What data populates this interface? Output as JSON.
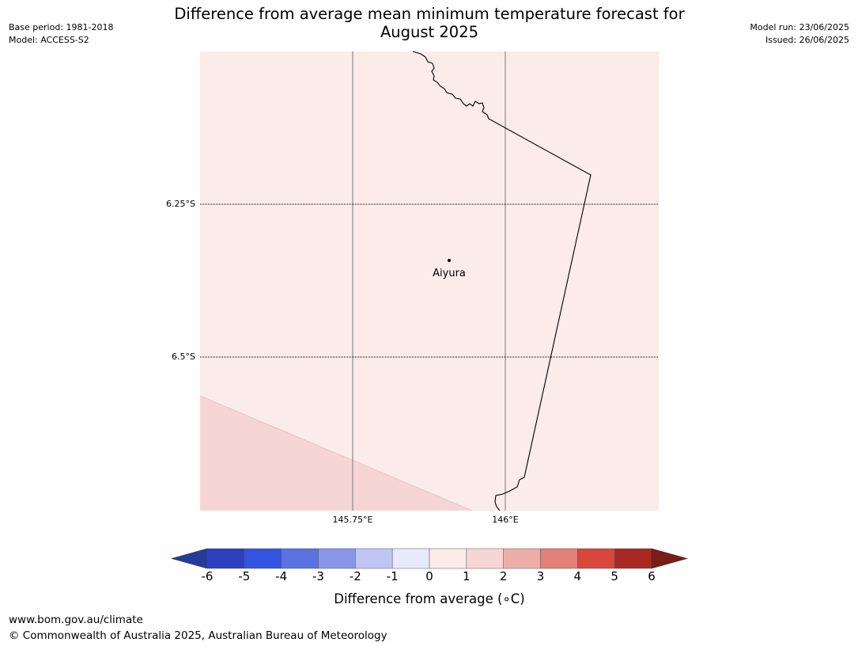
{
  "header": {
    "title_line1": "Difference from average mean minimum temperature forecast for",
    "title_line2": "August 2025",
    "base_period": "Base period: 1981-2018",
    "model": "Model: ACCESS-S2",
    "model_run": "Model run: 23/06/2025",
    "issued": "Issued: 26/06/2025"
  },
  "map": {
    "lat_labels": [
      "6.25°S",
      "6.5°S"
    ],
    "lon_labels": [
      "145.75°E",
      "146°E"
    ],
    "place_name": "Aiyura",
    "main_fill_color": "#fbebe9",
    "lower_fill_color": "#f6d6d4"
  },
  "colorbar": {
    "ticks": [
      "-6",
      "-5",
      "-4",
      "-3",
      "-2",
      "-1",
      "0",
      "1",
      "2",
      "3",
      "4",
      "5",
      "6"
    ],
    "colors": [
      "#233b9c",
      "#2b3fbf",
      "#3353e0",
      "#5b72e2",
      "#8796e9",
      "#bfc6f3",
      "#e8eafb",
      "#fbebe9",
      "#f6d6d4",
      "#eeaea8",
      "#e4807a",
      "#d9473d",
      "#a92823",
      "#7a1c19"
    ],
    "label": "Difference from average (∘C)"
  },
  "footer": {
    "url": "www.bom.gov.au/climate",
    "copyright": "© Commonwealth of Australia 2025, Australian Bureau of Meteorology"
  }
}
